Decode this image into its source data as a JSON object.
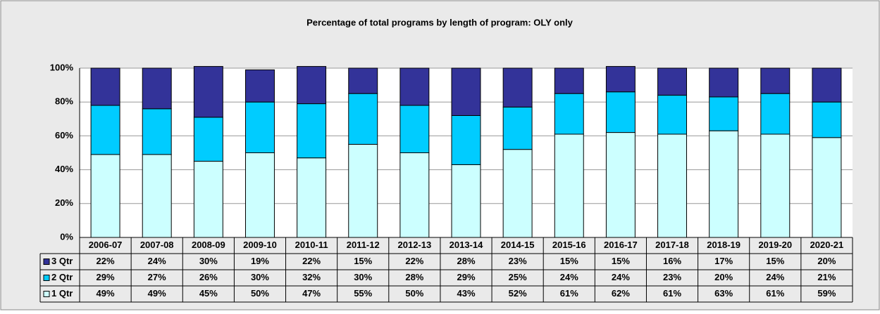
{
  "chart_data": {
    "type": "stacked_bar",
    "title": "Percentage of total programs by length of program: OLY only",
    "categories": [
      "2006-07",
      "2007-08",
      "2008-09",
      "2009-10",
      "2010-11",
      "2011-12",
      "2012-13",
      "2013-14",
      "2014-15",
      "2015-16",
      "2016-17",
      "2017-18",
      "2018-19",
      "2019-20",
      "2020-21"
    ],
    "series": [
      {
        "name": "1 Qtr",
        "color": "#ccffff",
        "values": [
          49,
          49,
          45,
          50,
          47,
          55,
          50,
          43,
          52,
          61,
          62,
          61,
          63,
          61,
          59
        ],
        "value_labels": [
          "49%",
          "49%",
          "45%",
          "50%",
          "47%",
          "55%",
          "50%",
          "43%",
          "52%",
          "61%",
          "62%",
          "61%",
          "63%",
          "61%",
          "59%"
        ]
      },
      {
        "name": "2 Qtr",
        "color": "#00ccff",
        "values": [
          29,
          27,
          26,
          30,
          32,
          30,
          28,
          29,
          25,
          24,
          24,
          23,
          20,
          24,
          21
        ],
        "value_labels": [
          "29%",
          "27%",
          "26%",
          "30%",
          "32%",
          "30%",
          "28%",
          "29%",
          "25%",
          "24%",
          "24%",
          "23%",
          "20%",
          "24%",
          "21%"
        ]
      },
      {
        "name": "3 Qtr",
        "color": "#333399",
        "values": [
          22,
          24,
          30,
          19,
          22,
          15,
          22,
          28,
          23,
          15,
          15,
          16,
          17,
          15,
          20
        ],
        "value_labels": [
          "22%",
          "24%",
          "30%",
          "19%",
          "22%",
          "15%",
          "22%",
          "28%",
          "23%",
          "15%",
          "15%",
          "16%",
          "17%",
          "15%",
          "20%"
        ]
      }
    ],
    "ylim": [
      0,
      100
    ],
    "yticks": [
      {
        "value": 0,
        "label": "0%"
      },
      {
        "value": 20,
        "label": "20%"
      },
      {
        "value": 40,
        "label": "40%"
      },
      {
        "value": 60,
        "label": "60%"
      },
      {
        "value": 80,
        "label": "80%"
      },
      {
        "value": 100,
        "label": "100%"
      }
    ],
    "grid": true
  }
}
